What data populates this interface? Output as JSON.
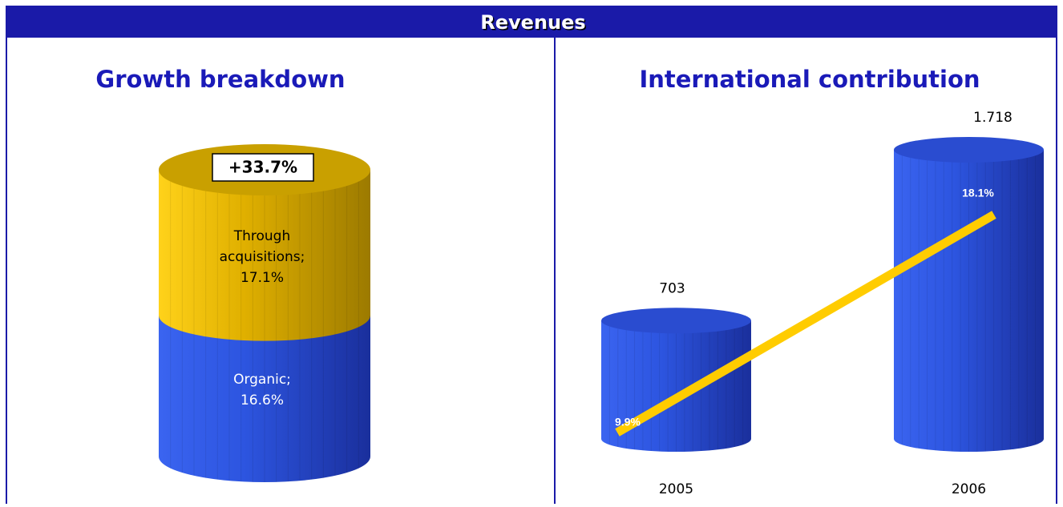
{
  "header": {
    "title": "Revenues"
  },
  "chart_data": [
    {
      "type": "stacked-cylinder",
      "title": "Growth breakdown",
      "total_label": "+33.7%",
      "series": [
        {
          "name": "Organic;",
          "color": "#2d55e0",
          "values": [
            16.6
          ],
          "value_labels": [
            "16.6%"
          ]
        },
        {
          "name": "Through acquisitions;",
          "color": "#e8b800",
          "values": [
            17.1
          ],
          "value_labels": [
            "17.1%"
          ]
        }
      ]
    },
    {
      "type": "cylinder-bar-line",
      "title": "International contribution",
      "categories": [
        "2005",
        "2006"
      ],
      "series": [
        {
          "type": "bar",
          "color": "#2d55e0",
          "values": [
            703,
            1718
          ],
          "value_labels": [
            "703",
            "1.718"
          ]
        },
        {
          "type": "line",
          "axis": "y2",
          "color": "#ffcc00",
          "values": [
            9.9,
            18.1
          ],
          "value_labels": [
            "9.9%",
            "18.1%"
          ]
        }
      ]
    }
  ]
}
